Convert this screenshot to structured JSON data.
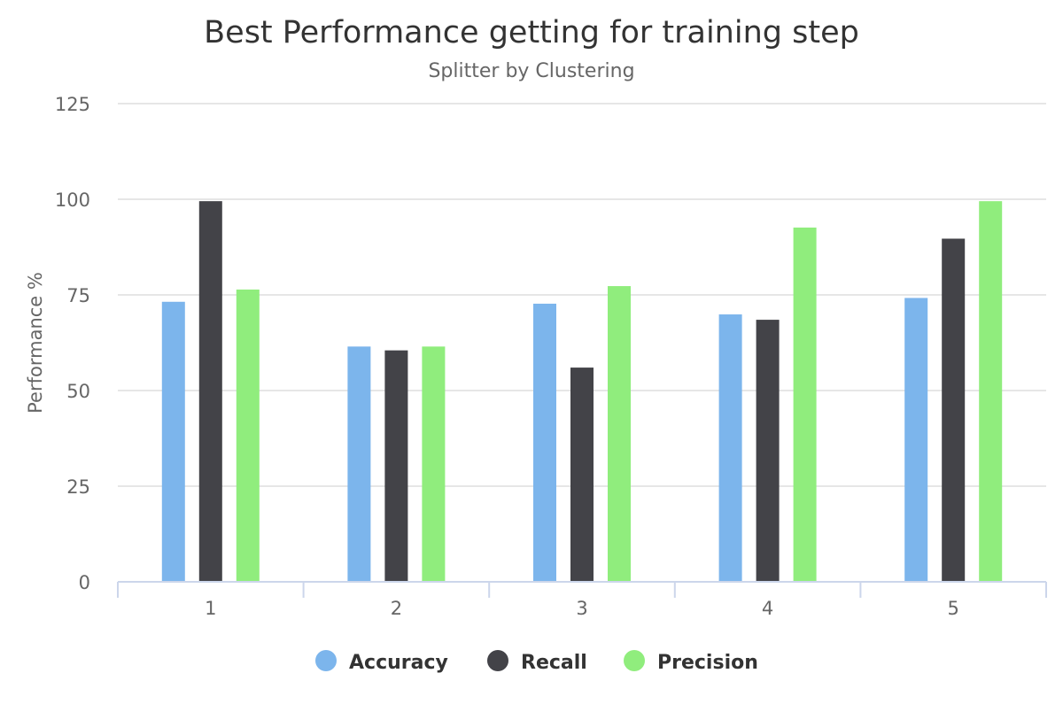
{
  "chart_data": {
    "type": "bar",
    "title": "Best Performance getting for training step",
    "subtitle": "Splitter by Clustering",
    "ylabel": "Performance %",
    "xlabel": "",
    "categories": [
      "1",
      "2",
      "3",
      "4",
      "5"
    ],
    "ylim": [
      0,
      125
    ],
    "yticks": [
      "0",
      "25",
      "50",
      "75",
      "100",
      "125"
    ],
    "grid": true,
    "legend_position": "bottom-center",
    "series": [
      {
        "name": "Accuracy",
        "color": "#7cb5ec",
        "values": [
          73.2,
          61.5,
          72.7,
          69.9,
          74.2
        ]
      },
      {
        "name": "Recall",
        "color": "#434348",
        "values": [
          99.5,
          60.5,
          56.0,
          68.5,
          89.7
        ]
      },
      {
        "name": "Precision",
        "color": "#90ed7d",
        "values": [
          76.4,
          61.5,
          77.3,
          92.6,
          99.5
        ]
      }
    ]
  }
}
